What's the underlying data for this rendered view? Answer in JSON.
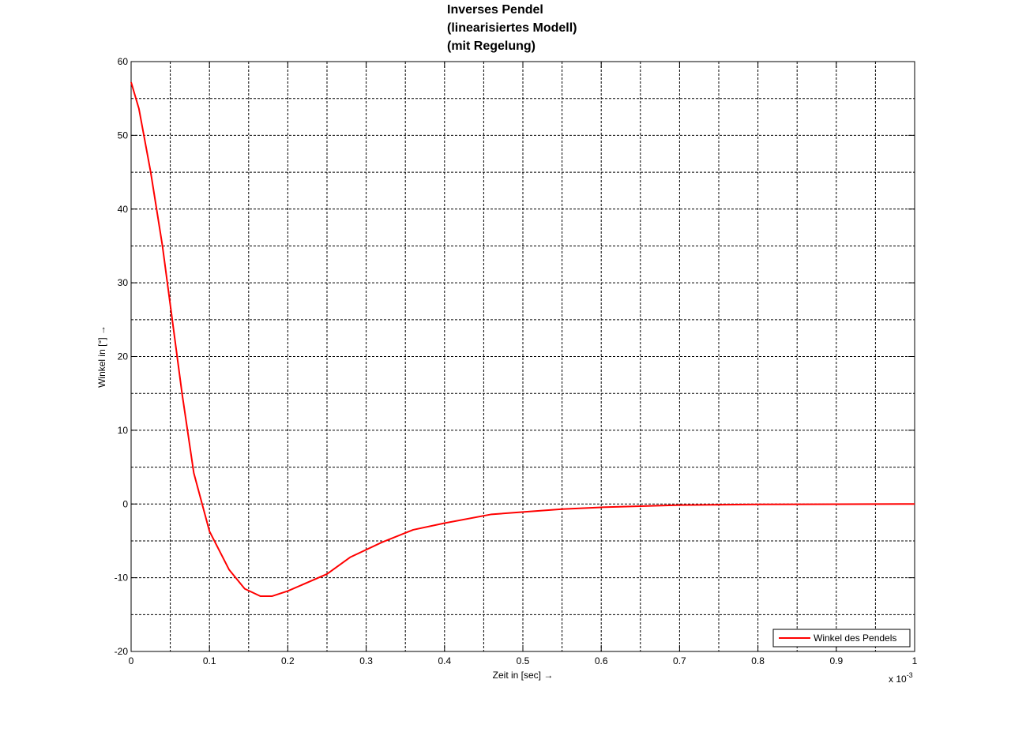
{
  "chart_data": {
    "type": "line",
    "title": [
      "Inverses Pendel",
      "(linearisiertes Modell)",
      "(mit Regelung)"
    ],
    "x_label": "Zeit in [sec] →",
    "y_label": "Winkel in [°] →",
    "x_scale_label": {
      "base": "x 10",
      "exponent": "-3"
    },
    "x": [
      0,
      0.01,
      0.025,
      0.04,
      0.05,
      0.065,
      0.08,
      0.1,
      0.125,
      0.145,
      0.165,
      0.18,
      0.2,
      0.25,
      0.28,
      0.32,
      0.36,
      0.4,
      0.46,
      0.55,
      0.6,
      0.7,
      0.8,
      1.0
    ],
    "series": [
      {
        "name": "Winkel des Pendels",
        "color": "#ff0000",
        "values": [
          57.2,
          53.6,
          45,
          35,
          27,
          15,
          4.2,
          -3.7,
          -8.9,
          -11.5,
          -12.5,
          -12.5,
          -11.8,
          -9.5,
          -7.2,
          -5.2,
          -3.5,
          -2.6,
          -1.4,
          -0.7,
          -0.45,
          -0.15,
          -0.05,
          0
        ]
      }
    ],
    "xlim": [
      0,
      1
    ],
    "ylim": [
      -20,
      60
    ],
    "xticks": [
      0,
      0.1,
      0.2,
      0.3,
      0.4,
      0.5,
      0.6,
      0.7,
      0.8,
      0.9,
      1
    ],
    "yticks": [
      -20,
      -10,
      0,
      10,
      20,
      30,
      40,
      50,
      60
    ],
    "x_minor_grid": [
      0.05,
      0.15,
      0.25,
      0.35,
      0.45,
      0.55,
      0.65,
      0.75,
      0.85,
      0.95
    ],
    "y_minor_grid": [
      -15,
      -5,
      5,
      15,
      25,
      35,
      45,
      55
    ],
    "grid": true,
    "legend": "lower right"
  }
}
